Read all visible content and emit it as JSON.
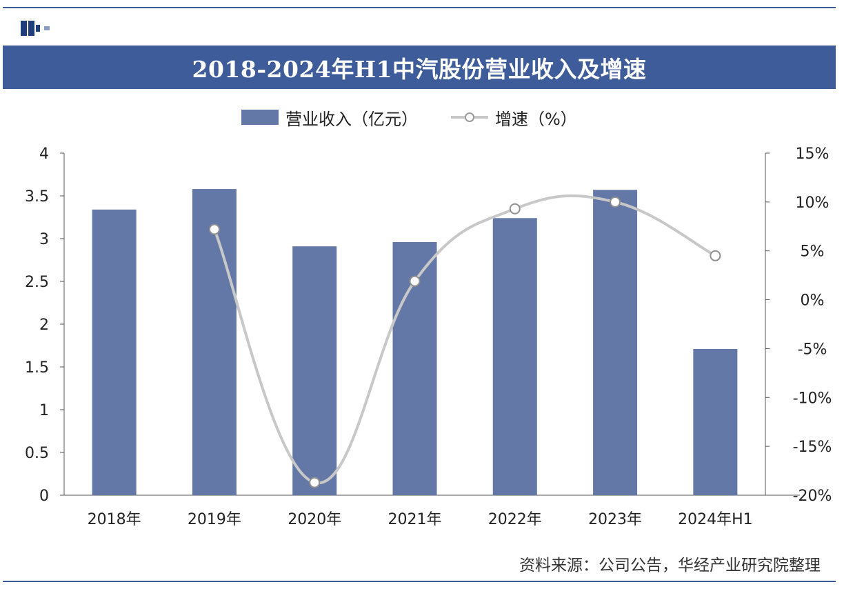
{
  "title": "2018-2024年H1中汽股份营业收入及增速",
  "legend": {
    "bar_label": "营业收入（亿元）",
    "line_label": "增速（%）"
  },
  "source": "资料来源：公司公告，华经产业研究院整理",
  "colors": {
    "bar": "#6378a6",
    "line": "#c8c8c8",
    "title_bg": "#3e5c99"
  },
  "chart_data": {
    "type": "bar",
    "categories": [
      "2018年",
      "2019年",
      "2020年",
      "2021年",
      "2022年",
      "2023年",
      "2024年H1"
    ],
    "series": [
      {
        "name": "营业收入（亿元）",
        "type": "bar",
        "axis": "left",
        "values": [
          3.34,
          3.58,
          2.91,
          2.96,
          3.24,
          3.57,
          1.71
        ]
      },
      {
        "name": "增速（%）",
        "type": "line",
        "axis": "right",
        "values": [
          null,
          7.2,
          -18.7,
          1.9,
          9.3,
          10.0,
          4.5
        ]
      }
    ],
    "left_axis": {
      "ylim": [
        0,
        4
      ],
      "ticks": [
        "0",
        "0.5",
        "1",
        "1.5",
        "2",
        "2.5",
        "3",
        "3.5",
        "4"
      ]
    },
    "right_axis": {
      "ylim": [
        -20,
        15
      ],
      "ticks": [
        "-20%",
        "-15%",
        "-10%",
        "-5%",
        "0%",
        "5%",
        "10%",
        "15%"
      ]
    },
    "legend_position": "top"
  }
}
